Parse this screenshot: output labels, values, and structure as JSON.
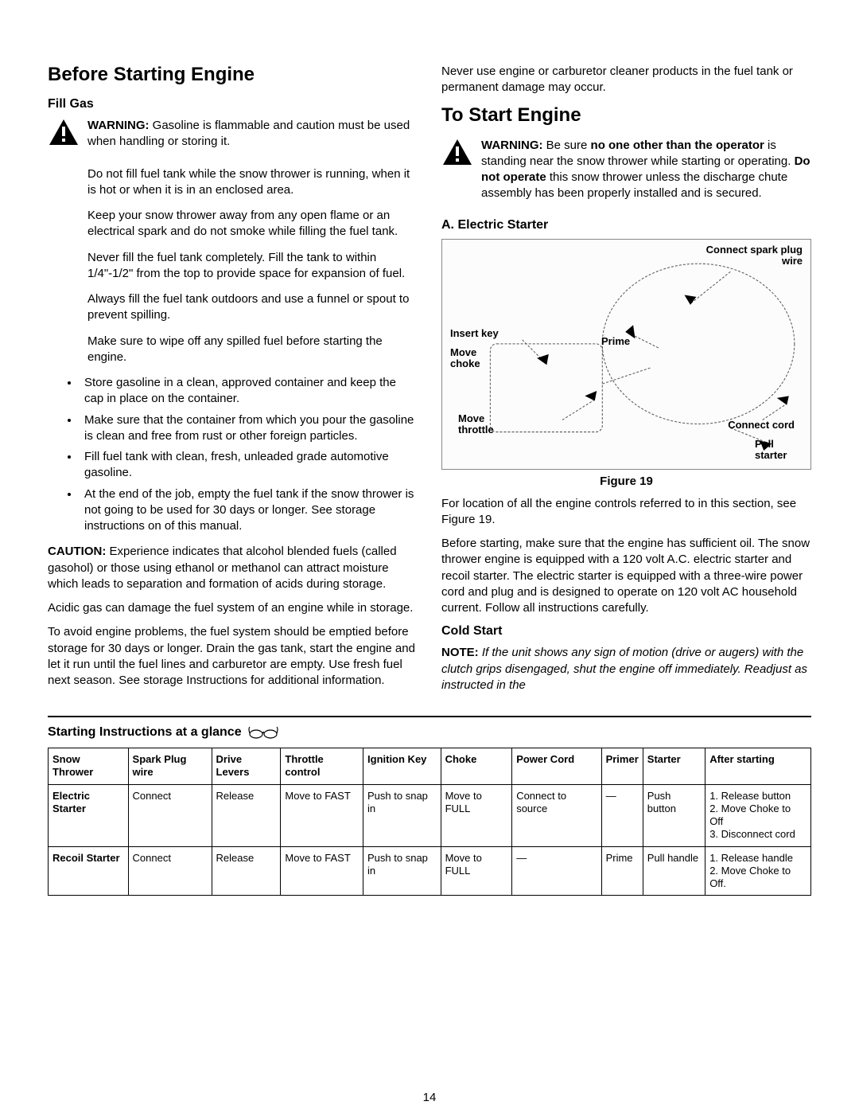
{
  "page_number": "14",
  "left": {
    "heading": "Before Starting Engine",
    "fill_gas": "Fill Gas",
    "warning_lead": "WARNING:",
    "warning_text": " Gasoline is flammable and caution must be used when handling or storing it.",
    "p1": "Do not fill fuel tank while the snow thrower is running, when it is hot or when it is in an enclosed area.",
    "p2": "Keep your snow thrower away from any open flame or an electrical spark and do not smoke while filling the fuel tank.",
    "p3": "Never fill the fuel tank completely. Fill the tank to within 1/4\"-1/2\" from the top to provide space for expansion of fuel.",
    "p4": "Always fill the fuel tank outdoors and use a funnel or spout to prevent spilling.",
    "p5": "Make sure to wipe off any spilled fuel before starting the engine.",
    "bullets": [
      "Store gasoline in a clean, approved container and keep the cap in place on the container.",
      "Make sure that the container from which you pour the gasoline is clean and free from rust or other foreign particles.",
      "Fill fuel tank with clean, fresh, unleaded grade automotive gasoline.",
      "At the end of the job, empty the fuel tank if the snow thrower is not going to be used for 30 days or longer. See storage instructions on  of this manual."
    ],
    "caution_lead": "CAUTION:",
    "caution_text": " Experience indicates that alcohol blended fuels (called gasohol) or those using ethanol or methanol can attract moisture which leads to separation and formation of acids during storage.",
    "acidic": "Acidic gas can damage the fuel system of an engine while in storage.",
    "avoid": "To avoid engine problems, the fuel system should be emptied before storage for 30 days or longer. Drain the gas tank, start the engine and let it run until the fuel lines and carburetor are empty. Use fresh fuel next season. See storage Instructions for additional information."
  },
  "right": {
    "top_note": "Never use engine or carburetor cleaner products in the fuel tank or permanent damage may occur.",
    "heading": "To Start Engine",
    "warning_lead": "WARNING:",
    "warning_a": " Be sure ",
    "warning_b": "no one other than the operator",
    "warning_c": " is standing near the snow thrower while starting or operating. ",
    "warning_d": "Do not operate",
    "warning_e": " this snow thrower unless the discharge chute assembly has been properly installed and is secured.",
    "electric_starter": "A. Electric Starter",
    "fig_labels": {
      "spark": "Connect spark plug wire",
      "key": "Insert key",
      "choke": "Move choke",
      "prime": "Prime",
      "throttle": "Move throttle",
      "cord": "Connect cord",
      "starter": "Pull starter"
    },
    "figure_caption": "Figure 19",
    "loc_text": "For location of all the engine controls referred to in this section, see Figure 19.",
    "before_start": "Before starting, make sure that the engine has sufficient oil. The snow thrower engine is equipped with a 120 volt A.C. electric starter and recoil starter. The electric starter is equipped with a three-wire power cord and plug and is designed to operate on 120 volt AC household current. Follow all instructions carefully.",
    "cold_start": "Cold Start",
    "note_lead": "NOTE:",
    "note_text": " If the unit shows any sign of motion (drive or augers) with the clutch grips disengaged, shut the engine off immediately. Readjust as instructed in the"
  },
  "glance": {
    "title": "Starting Instructions at a glance",
    "headers": [
      "Snow Thrower",
      "Spark Plug wire",
      "Drive Levers",
      "Throttle control",
      "Ignition Key",
      "Choke",
      "Power Cord",
      "Primer",
      "Starter",
      "After starting"
    ],
    "rows": [
      {
        "name": "Electric Starter",
        "cells": [
          "Connect",
          "Release",
          "Move to FAST",
          "Push to snap in",
          "Move to FULL",
          "Connect to source",
          "—",
          "Push button",
          "1. Release button\n2. Move Choke to Off\n3. Disconnect cord"
        ]
      },
      {
        "name": "Recoil Starter",
        "cells": [
          "Connect",
          "Release",
          "Move to FAST",
          "Push to snap in",
          "Move to FULL",
          "—",
          "Prime",
          "Pull handle",
          "1. Release handle\n2. Move Choke to Off."
        ]
      }
    ]
  },
  "colors": {
    "text": "#000000",
    "bg": "#ffffff",
    "border": "#000000"
  }
}
